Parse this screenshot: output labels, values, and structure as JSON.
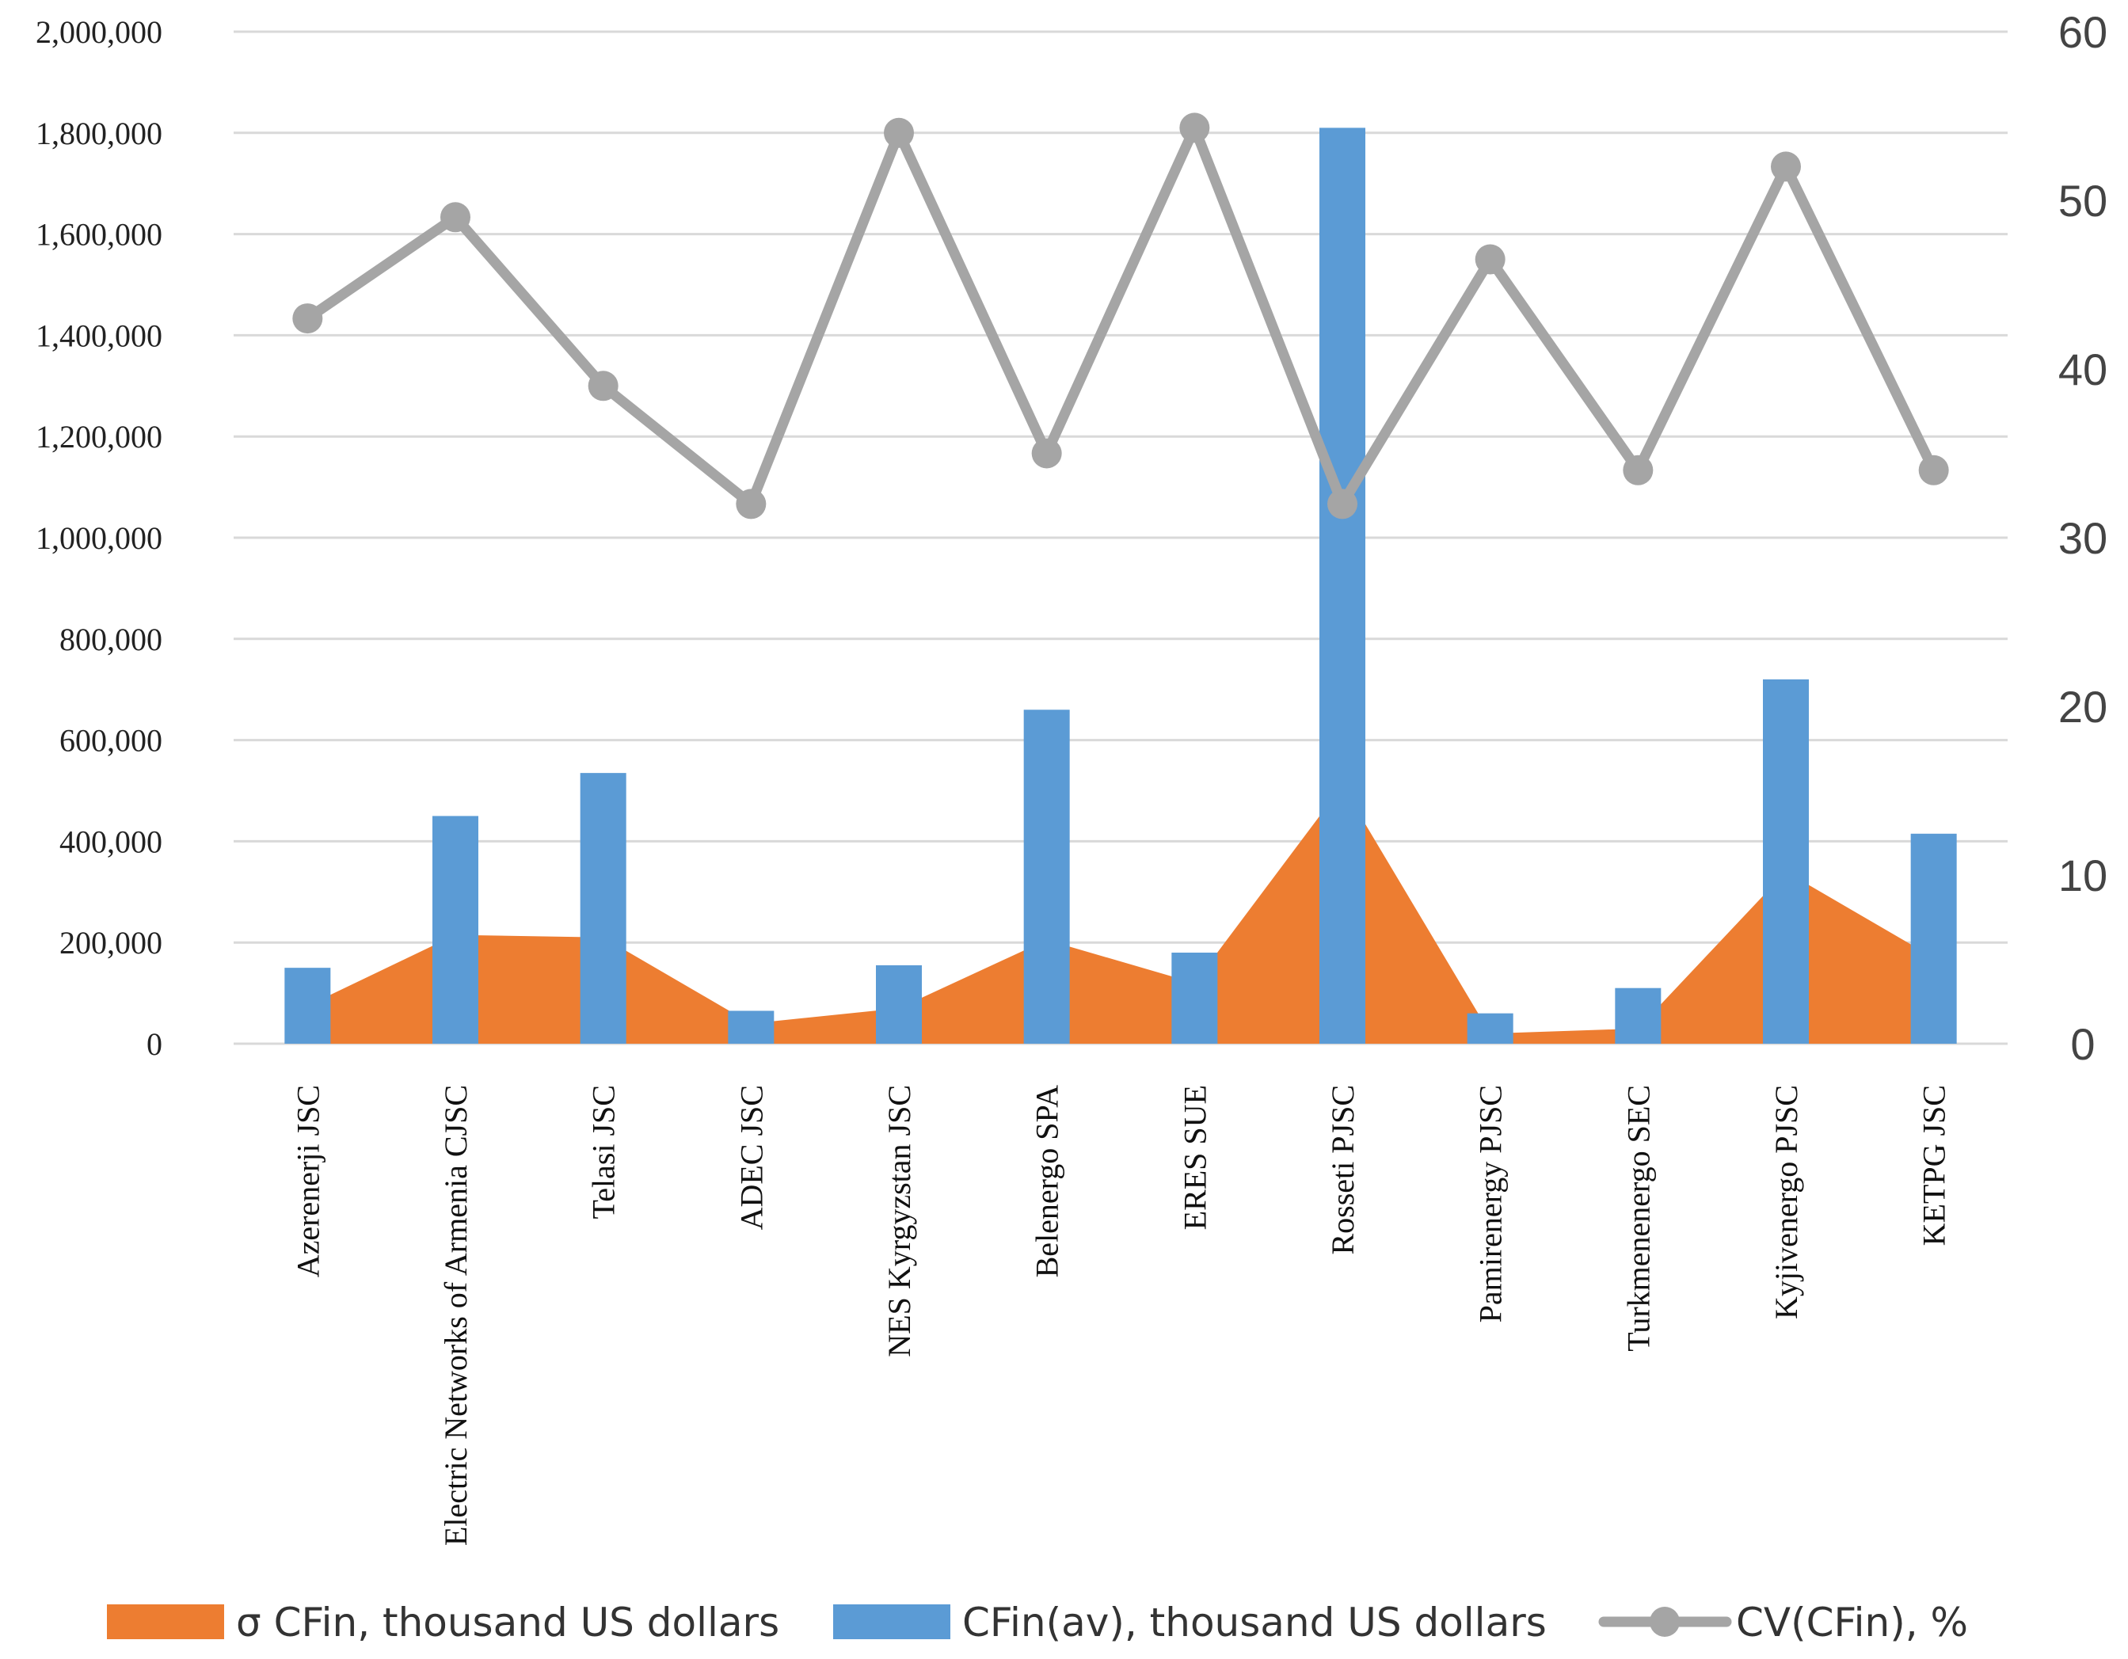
{
  "chart_data": {
    "type": "bar",
    "categories": [
      "Azerenerji JSC",
      "Electric Networks of Armenia CJSC",
      "Telasi JSC",
      "ADEC JSC",
      "NES Kyrgyzstan JSC",
      "Belenergo SPA",
      "ERES SUE",
      "Rosseti PJSC",
      "Pamirenergy PJSC",
      "Turkmenenergo SEC",
      "Kyjivenergo PJSC",
      "KETPG JSC"
    ],
    "series": [
      {
        "name": "σ CFin, thousand US dollars",
        "type": "area",
        "axis": "left",
        "color": "#ED7D31",
        "values": [
          75000,
          215000,
          210000,
          40000,
          70000,
          205000,
          120000,
          510000,
          20000,
          30000,
          340000,
          170000
        ]
      },
      {
        "name": "CFin(av), thousand US dollars",
        "type": "bar",
        "axis": "left",
        "color": "#5B9BD5",
        "values": [
          150000,
          450000,
          535000,
          65000,
          155000,
          660000,
          180000,
          1810000,
          60000,
          110000,
          720000,
          415000
        ]
      },
      {
        "name": "CV(CFin), %",
        "type": "line",
        "axis": "right",
        "color": "#A5A5A5",
        "values": [
          43,
          49,
          39,
          32,
          54,
          35,
          54.3,
          32,
          46.5,
          34,
          52,
          34
        ]
      }
    ],
    "y_left": {
      "min": 0,
      "max": 2000000,
      "step": 200000,
      "tick_labels": [
        "0",
        "200,000",
        "400,000",
        "600,000",
        "800,000",
        "1,000,000",
        "1,200,000",
        "1,400,000",
        "1,600,000",
        "1,800,000",
        "2,000,000"
      ]
    },
    "y_right": {
      "min": 0,
      "max": 60,
      "step": 10,
      "tick_labels": [
        "0",
        "10",
        "20",
        "30",
        "40",
        "50",
        "60"
      ]
    },
    "grid": true,
    "legend_position": "bottom"
  }
}
